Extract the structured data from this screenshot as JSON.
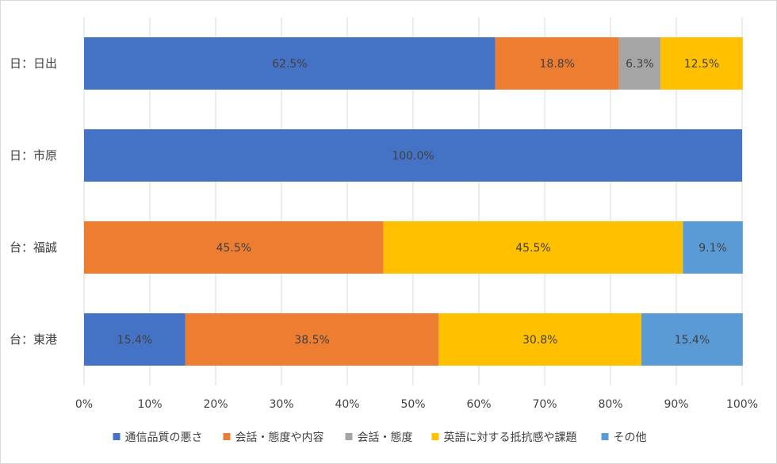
{
  "chart_data": {
    "type": "bar",
    "orientation": "horizontal",
    "stacked": "percent",
    "categories": [
      "日：日出",
      "日：市原",
      "台：福誠",
      "台：東港"
    ],
    "series": [
      {
        "name": "通信品質の悪さ",
        "color": "#4472C4",
        "values": [
          62.5,
          100.0,
          0,
          15.4
        ]
      },
      {
        "name": "会話・態度や内容",
        "color": "#ED7D31",
        "values": [
          18.8,
          0,
          45.5,
          38.5
        ]
      },
      {
        "name": "会話・態度",
        "color": "#A5A5A5",
        "values": [
          6.3,
          0,
          0,
          0
        ]
      },
      {
        "name": "英語に対する抵抗感や課題",
        "color": "#FFC000",
        "values": [
          12.5,
          0,
          45.5,
          30.8
        ]
      },
      {
        "name": "その他",
        "color": "#5B9BD5",
        "values": [
          0,
          0,
          9.1,
          15.4
        ]
      }
    ],
    "data_labels": [
      [
        "62.5%",
        "18.8%",
        "6.3%",
        "12.5%",
        ""
      ],
      [
        "100.0%",
        "",
        "",
        "",
        ""
      ],
      [
        "",
        "45.5%",
        "",
        "45.5%",
        "9.1%"
      ],
      [
        "15.4%",
        "38.5%",
        "",
        "30.8%",
        "15.4%"
      ]
    ],
    "x_ticks": [
      "0%",
      "10%",
      "20%",
      "30%",
      "40%",
      "50%",
      "60%",
      "70%",
      "80%",
      "90%",
      "100%"
    ],
    "xlim": [
      0,
      100
    ],
    "grid": true,
    "legend_position": "bottom"
  }
}
